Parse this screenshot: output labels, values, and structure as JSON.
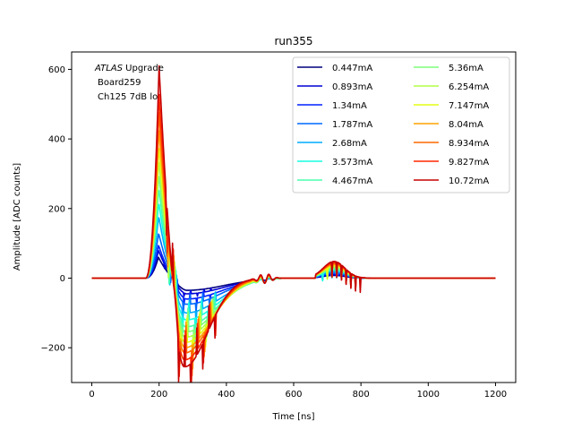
{
  "chart_data": {
    "type": "line",
    "title": "run355",
    "xlabel": "Time [ns]",
    "ylabel": "Amplitude [ADC counts]",
    "xlim": [
      -60,
      1260
    ],
    "ylim": [
      -300,
      650
    ],
    "xticks": [
      0,
      200,
      400,
      600,
      800,
      1000,
      1200
    ],
    "yticks": [
      -200,
      0,
      200,
      400,
      600
    ],
    "xtick_labels": [
      "0",
      "200",
      "400",
      "600",
      "800",
      "1000",
      "1200"
    ],
    "ytick_labels": [
      "−200",
      "0",
      "200",
      "400",
      "600"
    ],
    "grid": false,
    "legend_position": "top-right",
    "legend_columns": 2,
    "annotation": {
      "line1_italic": "ATLAS",
      "line1_rest": " Upgrade",
      "line2": "Board259",
      "line3": "Ch125 7dB lo"
    },
    "series": [
      {
        "name": "0.447mA",
        "color": "#00007f",
        "peak": 60,
        "undershoot": -35,
        "spike_amp": 0,
        "late_amp": 8
      },
      {
        "name": "0.893mA",
        "color": "#0000d5",
        "peak": 80,
        "undershoot": -45,
        "spike_amp": 10,
        "late_amp": 10
      },
      {
        "name": "1.34mA",
        "color": "#0020ff",
        "peak": 95,
        "undershoot": -60,
        "spike_amp": 20,
        "late_amp": 14
      },
      {
        "name": "1.787mA",
        "color": "#0068ff",
        "peak": 130,
        "undershoot": -75,
        "spike_amp": 30,
        "late_amp": 16
      },
      {
        "name": "2.68mA",
        "color": "#00acff",
        "peak": 180,
        "undershoot": -100,
        "spike_amp": 40,
        "late_amp": 20
      },
      {
        "name": "3.573mA",
        "color": "#16ffe1",
        "peak": 220,
        "undershoot": -120,
        "spike_amp": 50,
        "late_amp": 24
      },
      {
        "name": "4.467mA",
        "color": "#4affad",
        "peak": 260,
        "undershoot": -140,
        "spike_amp": 55,
        "late_amp": 27
      },
      {
        "name": "5.36mA",
        "color": "#7dff7a",
        "peak": 300,
        "undershoot": -155,
        "spike_amp": 60,
        "late_amp": 30
      },
      {
        "name": "6.254mA",
        "color": "#b1ff46",
        "peak": 340,
        "undershoot": -170,
        "spike_amp": 65,
        "late_amp": 33
      },
      {
        "name": "7.147mA",
        "color": "#e4ff13",
        "peak": 380,
        "undershoot": -185,
        "spike_amp": 70,
        "late_amp": 36
      },
      {
        "name": "8.04mA",
        "color": "#ffa300",
        "peak": 430,
        "undershoot": -200,
        "spike_amp": 75,
        "late_amp": 39
      },
      {
        "name": "8.934mA",
        "color": "#ff6800",
        "peak": 480,
        "undershoot": -215,
        "spike_amp": 80,
        "late_amp": 42
      },
      {
        "name": "9.827mA",
        "color": "#ff2900",
        "peak": 530,
        "undershoot": -235,
        "spike_amp": 85,
        "late_amp": 45
      },
      {
        "name": "10.72mA",
        "color": "#c60000",
        "peak": 610,
        "undershoot": -255,
        "spike_amp": 90,
        "late_amp": 48
      }
    ]
  }
}
